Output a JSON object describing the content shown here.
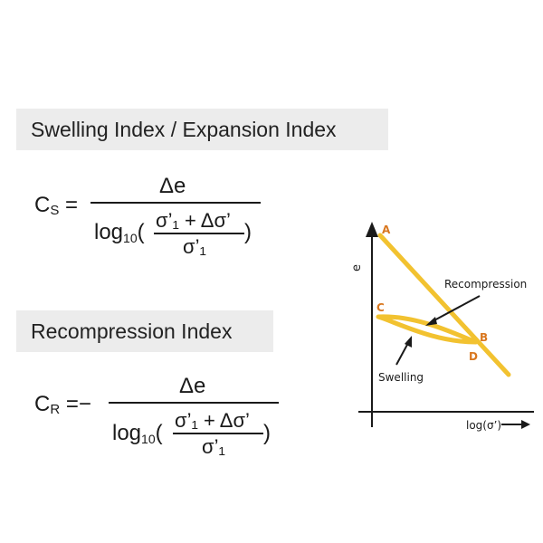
{
  "sections": [
    {
      "heading": "Swelling Index / Expansion Index",
      "formula": {
        "symbol": "C",
        "subscript": "S",
        "equals": "=",
        "numerator": "Δe",
        "den_log": "log",
        "den_base": "10",
        "den_paren_open": "(",
        "den_paren_close": ")",
        "inner_numerator": "σ’₁ + Δσ’",
        "inner_denominator": "σ’₁"
      }
    },
    {
      "heading": "Recompression Index",
      "formula": {
        "symbol": "C",
        "subscript": "R",
        "equals": "=−",
        "numerator": "Δe",
        "den_log": "log",
        "den_base": "10",
        "den_paren_open": "(",
        "den_paren_close": ")",
        "inner_numerator": "σ’₁ + Δσ’",
        "inner_denominator": "σ’₁"
      }
    }
  ],
  "diagram": {
    "y_axis_label": "e",
    "x_axis_label": "log(σ’)",
    "points": {
      "A": "A",
      "B": "B",
      "C": "C",
      "D": "D"
    },
    "annotations": {
      "recompression": "Recompression",
      "swelling": "Swelling"
    },
    "colors": {
      "curve": "#f2c230",
      "point_label": "#d9771f",
      "axis": "#1a1a1a"
    }
  }
}
